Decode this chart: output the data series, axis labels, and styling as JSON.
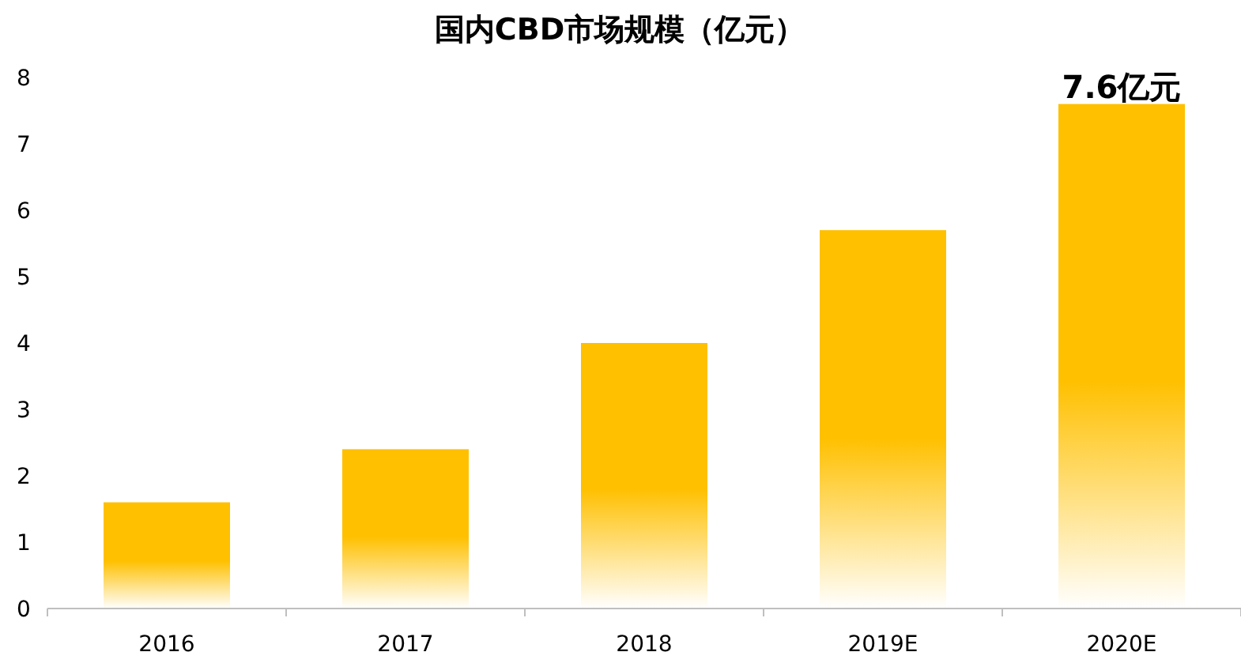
{
  "chart_data": {
    "type": "bar",
    "title": "国内CBD市场规模（亿元）",
    "categories": [
      "2016",
      "2017",
      "2018",
      "2019E",
      "2020E"
    ],
    "values": [
      1.6,
      2.4,
      4.0,
      5.7,
      7.6
    ],
    "color": "#ffc000",
    "ylim": [
      0,
      8
    ],
    "yticks": [
      0,
      1,
      2,
      3,
      4,
      5,
      6,
      7,
      8
    ],
    "annotations": [
      {
        "text": "7.6亿元",
        "x": "2020E",
        "y": 7.6
      }
    ]
  }
}
